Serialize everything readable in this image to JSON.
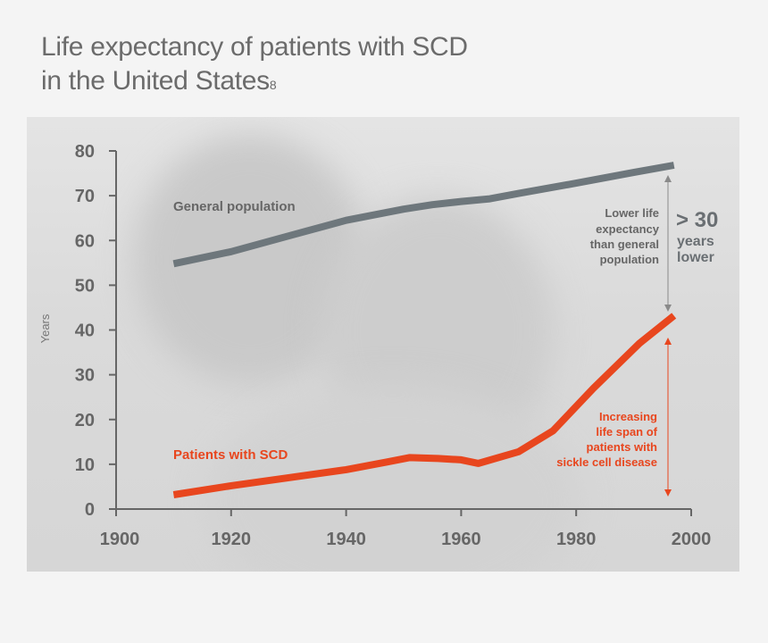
{
  "title": {
    "line1": "Life expectancy of patients with SCD",
    "line2": "in the United States",
    "superscript": "8"
  },
  "chart_data": {
    "type": "line",
    "ylabel": "Years",
    "xlabel": "",
    "xlim": [
      1900,
      2000
    ],
    "ylim": [
      0,
      80
    ],
    "x_ticks": [
      "1900",
      "1920",
      "1940",
      "1960",
      "1980",
      "2000"
    ],
    "y_ticks": [
      "0",
      "10",
      "20",
      "30",
      "40",
      "50",
      "60",
      "70",
      "80"
    ],
    "grid": false,
    "series": [
      {
        "name": "General population",
        "color": "#6e777c",
        "points": [
          [
            1910,
            54.8
          ],
          [
            1920,
            57.5
          ],
          [
            1930,
            61
          ],
          [
            1940,
            64.5
          ],
          [
            1950,
            67
          ],
          [
            1955,
            68
          ],
          [
            1960,
            68.7
          ],
          [
            1965,
            69.3
          ],
          [
            1970,
            70.5
          ],
          [
            1980,
            72.8
          ],
          [
            1990,
            75.2
          ],
          [
            1997,
            76.8
          ]
        ]
      },
      {
        "name": "Patients with SCD",
        "color": "#e8461e",
        "points": [
          [
            1910,
            3.2
          ],
          [
            1920,
            5.2
          ],
          [
            1930,
            7
          ],
          [
            1940,
            8.8
          ],
          [
            1947,
            10.5
          ],
          [
            1951,
            11.5
          ],
          [
            1956,
            11.3
          ],
          [
            1960,
            11
          ],
          [
            1963,
            10.2
          ],
          [
            1970,
            12.8
          ],
          [
            1976,
            17.5
          ],
          [
            1983,
            27
          ],
          [
            1991,
            37
          ],
          [
            1997,
            43.2
          ]
        ]
      }
    ],
    "annotations": {
      "gray_text": [
        "Lower life",
        "expectancy",
        "than general",
        "population"
      ],
      "big_value": "> 30",
      "big_sub": [
        "years",
        "lower"
      ],
      "orange_text": [
        "Increasing",
        "life span of",
        "patients with",
        "sickle cell disease"
      ]
    }
  }
}
